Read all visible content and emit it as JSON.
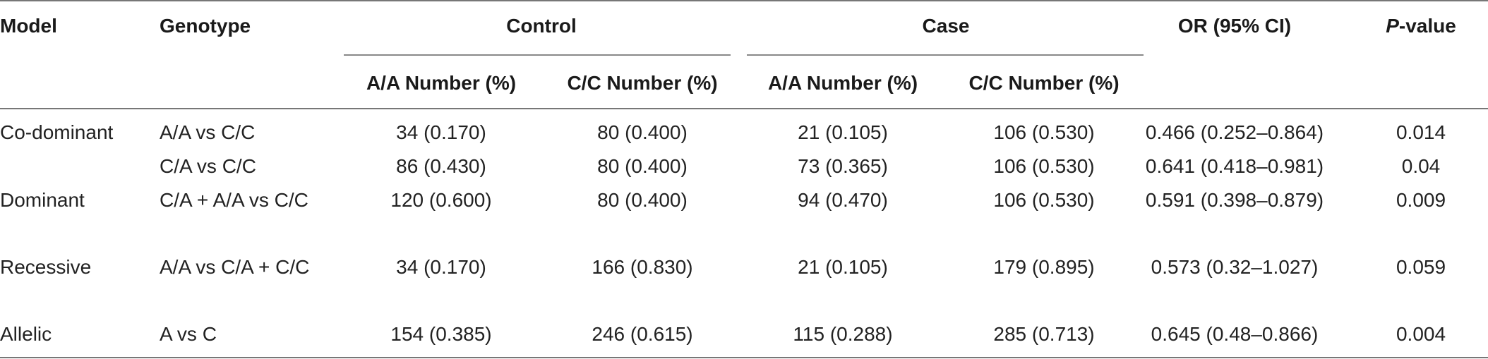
{
  "table": {
    "headers": {
      "model": "Model",
      "genotype": "Genotype",
      "control": "Control",
      "case": "Case",
      "or": "OR (95% CI)",
      "pvalue_italic": "P",
      "pvalue_rest": "-value",
      "control_aa": "A/A Number (%)",
      "control_cc": "C/C Number (%)",
      "case_aa": "A/A Number (%)",
      "case_cc": "C/C Number (%)"
    },
    "rows": [
      {
        "model": "Co-dominant",
        "genotype": "A/A vs C/C",
        "control_aa": "34 (0.170)",
        "control_cc": "80 (0.400)",
        "case_aa": "21 (0.105)",
        "case_cc": "106 (0.530)",
        "or": "0.466 (0.252–0.864)",
        "p": "0.014"
      },
      {
        "model": "",
        "genotype": "C/A vs C/C",
        "control_aa": "86 (0.430)",
        "control_cc": "80 (0.400)",
        "case_aa": "73 (0.365)",
        "case_cc": "106 (0.530)",
        "or": "0.641 (0.418–0.981)",
        "p": "0.04"
      },
      {
        "model": "Dominant",
        "genotype": "C/A + A/A vs C/C",
        "control_aa": "120 (0.600)",
        "control_cc": "80 (0.400)",
        "case_aa": "94 (0.470)",
        "case_cc": "106 (0.530)",
        "or": "0.591 (0.398–0.879)",
        "p": "0.009"
      },
      {
        "model": "Recessive",
        "genotype": "A/A vs C/A + C/C",
        "control_aa": "34 (0.170)",
        "control_cc": "166 (0.830)",
        "case_aa": "21 (0.105)",
        "case_cc": "179 (0.895)",
        "or": "0.573 (0.32–1.027)",
        "p": "0.059"
      },
      {
        "model": "Allelic",
        "genotype": "A vs C",
        "control_aa": "154 (0.385)",
        "control_cc": "246 (0.615)",
        "case_aa": "115 (0.288)",
        "case_cc": "285 (0.713)",
        "or": "0.645 (0.48–0.866)",
        "p": "0.004"
      }
    ]
  }
}
